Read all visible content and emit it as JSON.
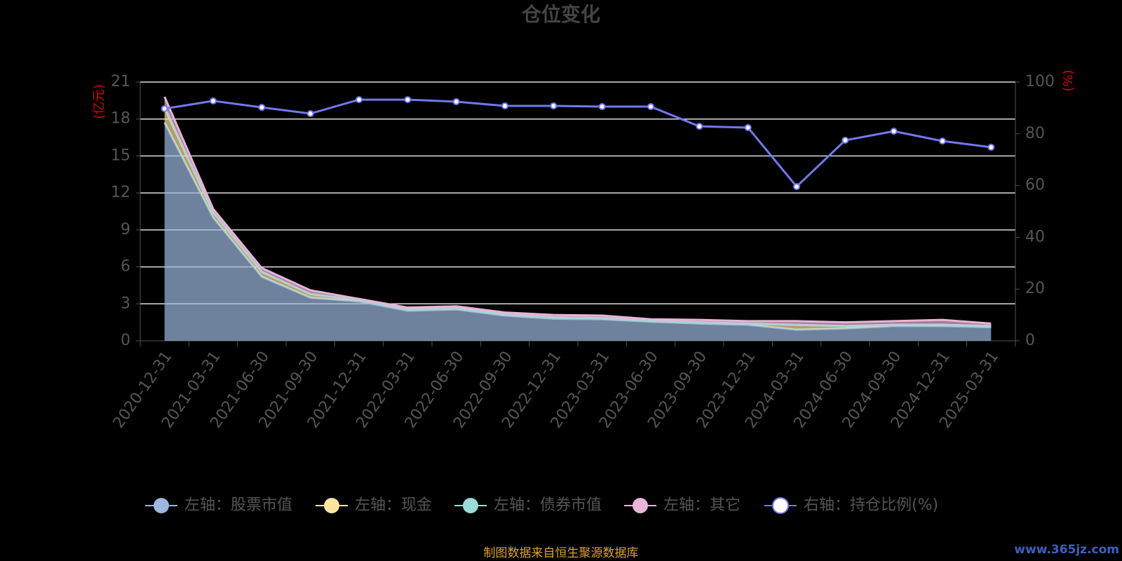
{
  "chart_data": {
    "type": "area",
    "title": "仓位变化",
    "y_axis_label": "(亿元)",
    "y2_axis_label": "(%)",
    "categories": [
      "2020-12-31",
      "2021-03-31",
      "2021-06-30",
      "2021-09-30",
      "2021-12-31",
      "2022-03-31",
      "2022-06-30",
      "2022-09-30",
      "2022-12-31",
      "2023-03-31",
      "2023-06-30",
      "2023-09-30",
      "2023-12-31",
      "2024-03-31",
      "2024-06-30",
      "2024-09-30",
      "2024-12-31",
      "2025-03-31"
    ],
    "stacked": true,
    "series": [
      {
        "name": "左轴：股票市值",
        "color": "#9cb8e0",
        "values": [
          17.7,
          10.0,
          5.2,
          3.5,
          3.2,
          2.45,
          2.55,
          2.05,
          1.8,
          1.75,
          1.55,
          1.4,
          1.3,
          0.9,
          1.0,
          1.2,
          1.2,
          1.1
        ]
      },
      {
        "name": "左轴：现金",
        "color": "#f8e6a0",
        "values": [
          1.2,
          0.4,
          0.4,
          0.3,
          0.1,
          0.1,
          0.1,
          0.1,
          0.1,
          0.1,
          0.1,
          0.1,
          0.1,
          0.4,
          0.2,
          0.1,
          0.1,
          0.1
        ]
      },
      {
        "name": "左轴：债券市值",
        "color": "#9cdcd6",
        "values": [
          0.1,
          0,
          0,
          0,
          0,
          0,
          0,
          0,
          0,
          0,
          0,
          0,
          0,
          0,
          0,
          0,
          0,
          0
        ]
      },
      {
        "name": "左轴：其它",
        "color": "#e8b4d8",
        "values": [
          0.8,
          0.3,
          0.3,
          0.3,
          0.1,
          0.15,
          0.15,
          0.15,
          0.2,
          0.2,
          0.1,
          0.2,
          0.2,
          0.3,
          0.3,
          0.3,
          0.4,
          0.2
        ]
      },
      {
        "name": "右轴：持仓比例(%)",
        "color": "#7078f0",
        "axis": "y2",
        "values": [
          89.7,
          92.7,
          90.2,
          87.8,
          93.2,
          93.2,
          92.4,
          90.8,
          90.8,
          90.5,
          90.5,
          82.9,
          82.4,
          59.6,
          77.5,
          81.0,
          77.2,
          74.8
        ]
      }
    ],
    "ylim": [
      0,
      21
    ],
    "yticks": [
      0,
      3,
      6,
      9,
      12,
      15,
      18,
      21
    ],
    "y2lim": [
      0,
      100
    ],
    "y2ticks": [
      0,
      20,
      40,
      60,
      80,
      100
    ],
    "grid": true
  },
  "source": "制图数据来自恒生聚源数据库",
  "watermark": "www.365jz.com"
}
